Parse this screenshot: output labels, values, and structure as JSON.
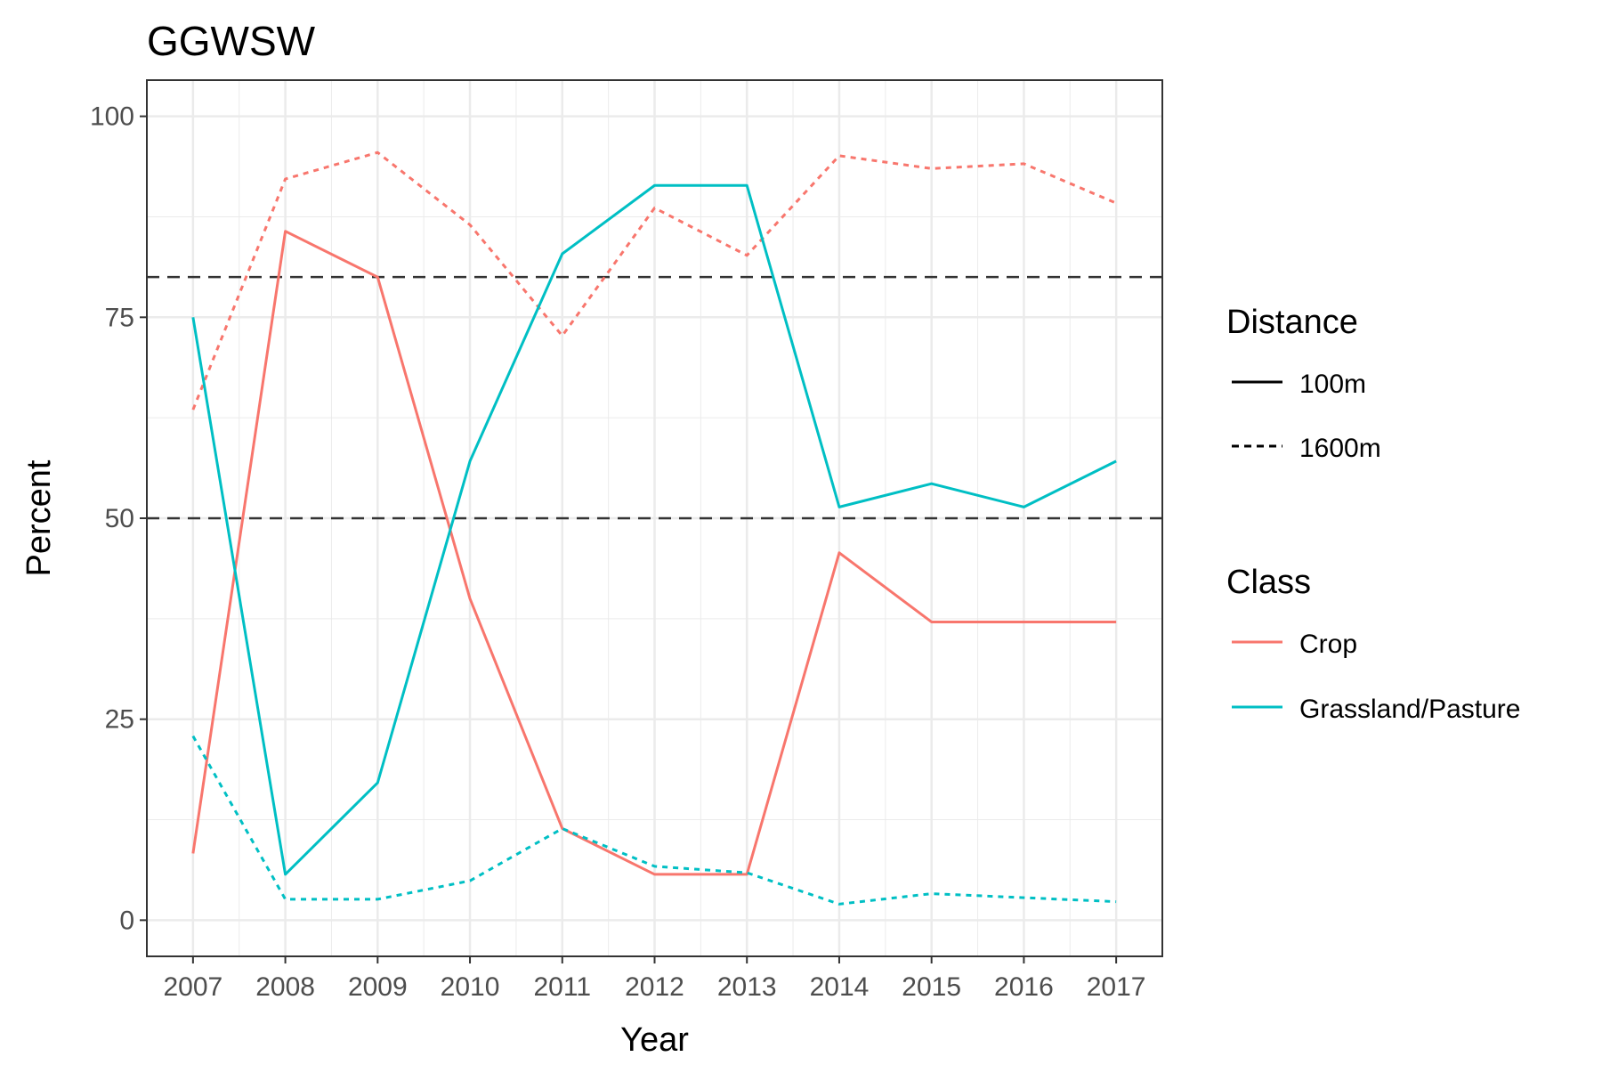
{
  "chart_data": {
    "type": "line",
    "title": "GGWSW",
    "xlabel": "Year",
    "ylabel": "Percent",
    "x": [
      2007,
      2008,
      2009,
      2010,
      2011,
      2012,
      2013,
      2014,
      2015,
      2016,
      2017
    ],
    "x_tick_labels": [
      "2007",
      "2008",
      "2009",
      "2010",
      "2011",
      "2012",
      "2013",
      "2014",
      "2015",
      "2016",
      "2017"
    ],
    "y_ticks": [
      0,
      25,
      50,
      75,
      100
    ],
    "y_tick_labels": [
      "0",
      "25",
      "50",
      "75",
      "100"
    ],
    "ylim": [
      -4.5,
      104.5
    ],
    "xlim": [
      2006.5,
      2017.5
    ],
    "grid": true,
    "reference_lines": [
      50,
      80
    ],
    "series": [
      {
        "class": "Crop",
        "distance": "100m",
        "values": [
          8.3,
          85.7,
          80.0,
          40.0,
          11.4,
          5.7,
          5.7,
          45.7,
          37.1,
          37.1,
          37.1
        ]
      },
      {
        "class": "Crop",
        "distance": "1600m",
        "values": [
          63.5,
          92.2,
          95.5,
          86.5,
          72.7,
          88.6,
          82.7,
          95.1,
          93.5,
          94.1,
          89.2
        ]
      },
      {
        "class": "Grassland/Pasture",
        "distance": "100m",
        "values": [
          75.0,
          5.7,
          17.1,
          57.1,
          82.9,
          91.4,
          91.4,
          51.4,
          54.3,
          51.4,
          57.1
        ]
      },
      {
        "class": "Grassland/Pasture",
        "distance": "1600m",
        "values": [
          22.9,
          2.6,
          2.6,
          4.9,
          11.4,
          6.7,
          5.9,
          2.0,
          3.3,
          2.8,
          2.3
        ]
      }
    ],
    "legend": {
      "position": "right",
      "distance": {
        "title": "Distance",
        "items": [
          {
            "label": "100m",
            "dash": "solid"
          },
          {
            "label": "1600m",
            "dash": "dashed"
          }
        ]
      },
      "class": {
        "title": "Class",
        "items": [
          {
            "label": "Crop",
            "color": "#F8766D"
          },
          {
            "label": "Grassland/Pasture",
            "color": "#00BFC4"
          }
        ]
      }
    },
    "colors": {
      "Crop": "#F8766D",
      "Grassland/Pasture": "#00BFC4",
      "reference": "#333333",
      "panel_border": "#333333",
      "grid": "#ebebeb"
    }
  }
}
